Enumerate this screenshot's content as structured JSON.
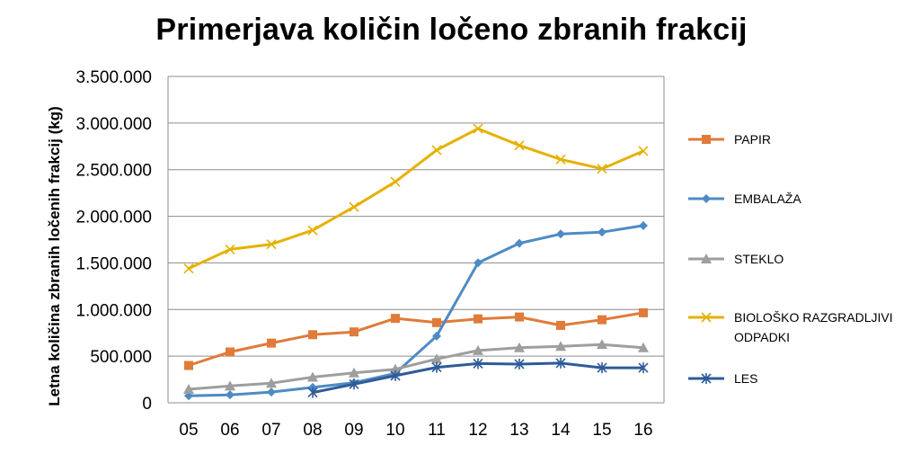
{
  "chart_data": {
    "type": "line",
    "title": "Primerjava količin ločeno zbranih frakcij",
    "xlabel": "",
    "ylabel": "Letna količina zbranih ločenih frakcij (kg)",
    "categories": [
      "05",
      "06",
      "07",
      "08",
      "09",
      "10",
      "11",
      "12",
      "13",
      "14",
      "15",
      "16"
    ],
    "ylim": [
      0,
      3500000
    ],
    "yticks": [
      0,
      500000,
      1000000,
      1500000,
      2000000,
      2500000,
      3000000,
      3500000
    ],
    "ytick_labels": [
      "0",
      "500.000",
      "1.000.000",
      "1.500.000",
      "2.000.000",
      "2.500.000",
      "3.000.000",
      "3.500.000"
    ],
    "grid": true,
    "legend_position": "right",
    "series": [
      {
        "name": "PAPIR",
        "color": "#E07B39",
        "marker": "square",
        "values": [
          400000,
          545000,
          640000,
          730000,
          760000,
          905000,
          860000,
          900000,
          920000,
          830000,
          890000,
          965000
        ]
      },
      {
        "name": "EMBALAŽA",
        "color": "#4E8BC4",
        "marker": "diamond",
        "values": [
          75000,
          85000,
          115000,
          165000,
          215000,
          315000,
          715000,
          1500000,
          1710000,
          1810000,
          1830000,
          1900000
        ]
      },
      {
        "name": "STEKLO",
        "color": "#9E9E9E",
        "marker": "triangle",
        "values": [
          145000,
          180000,
          210000,
          275000,
          320000,
          360000,
          470000,
          560000,
          590000,
          605000,
          625000,
          590000
        ]
      },
      {
        "name": "BIOLOŠKO RAZGRADLJIVI ODPADKI",
        "legend_lines": [
          "BIOLOŠKO RAZGRADLJIVI",
          "ODPADKI"
        ],
        "color": "#E5B100",
        "marker": "x",
        "values": [
          1440000,
          1645000,
          1700000,
          1850000,
          2100000,
          2370000,
          2710000,
          2940000,
          2760000,
          2610000,
          2510000,
          2700000
        ]
      },
      {
        "name": "LES",
        "color": "#2E5B9A",
        "marker": "asterisk",
        "values": [
          null,
          null,
          null,
          110000,
          200000,
          290000,
          380000,
          420000,
          415000,
          425000,
          375000,
          375000
        ]
      }
    ]
  }
}
